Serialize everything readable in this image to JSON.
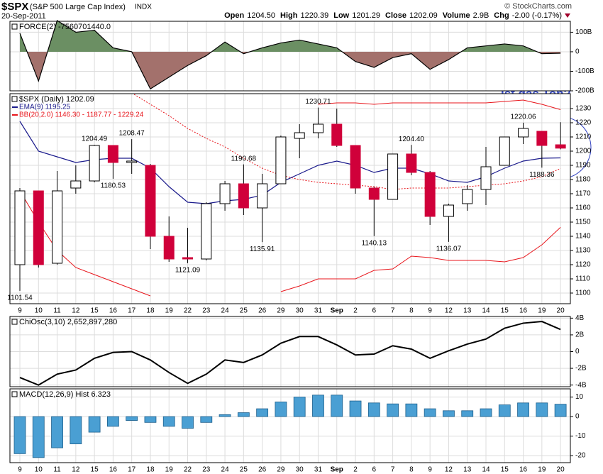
{
  "header": {
    "symbol": "$SPX",
    "name": "(S&P 500 Large Cap Index)",
    "exchange": "INDX",
    "date": "20-Sep-2011",
    "credit": "© StockCharts.com",
    "quote": [
      {
        "label": "Open",
        "value": "1204.50"
      },
      {
        "label": "High",
        "value": "1220.39"
      },
      {
        "label": "Low",
        "value": "1201.29"
      },
      {
        "label": "Close",
        "value": "1202.09"
      },
      {
        "label": "Volume",
        "value": "2.9B"
      },
      {
        "label": "Chg",
        "value": "-2.00 (-0.17%)"
      }
    ]
  },
  "chart_data": [
    {
      "type": "area",
      "title": "FORCE(2) -7560701440.0",
      "up_color": "#6b8f63",
      "down_color": "#a3716c",
      "values": [
        95,
        -150,
        160,
        100,
        110,
        20,
        0,
        -190,
        -130,
        -70,
        -20,
        50,
        -10,
        20,
        45,
        60,
        40,
        20,
        -50,
        -80,
        -30,
        -10,
        -90,
        -40,
        20,
        30,
        40,
        30,
        -10,
        -7.56
      ],
      "ylim": [
        -200,
        156
      ],
      "yticks": [
        {
          "value": 100,
          "label": "100B"
        },
        0,
        {
          "value": -100,
          "label": "-100B"
        },
        {
          "value": -200,
          "label": "-200B"
        }
      ],
      "grid": true
    },
    {
      "type": "candlestick",
      "title": "$SPX (Daily) 1202.09",
      "note": "ist das Top?",
      "categories": [
        "9",
        "10",
        "11",
        "12",
        "15",
        "16",
        "17",
        "18",
        "19",
        "22",
        "23",
        "24",
        "25",
        "26",
        "29",
        "30",
        "31",
        "Sep",
        "2",
        "6",
        "7",
        "8",
        "9",
        "12",
        "13",
        "14",
        "15",
        "16",
        "19",
        "20"
      ],
      "open": [
        1120,
        1172,
        1121,
        1174,
        1179,
        1204,
        1192,
        1190,
        1140,
        1125,
        1124,
        1163,
        1177,
        1160,
        1177,
        1209,
        1213,
        1219,
        1204,
        1174,
        1166,
        1198,
        1185,
        1154,
        1163,
        1173,
        1190,
        1210,
        1214,
        1204.5
      ],
      "high": [
        1174,
        1172,
        1186,
        1190,
        1204.49,
        1204,
        1208.47,
        1191,
        1154,
        1146,
        1164,
        1179,
        1190.68,
        1184,
        1211,
        1219,
        1230.71,
        1230,
        1204,
        1175,
        1198,
        1204.4,
        1186,
        1163,
        1176,
        1203,
        1210,
        1220.06,
        1214,
        1220.39
      ],
      "low": [
        1101.54,
        1118,
        1120,
        1170,
        1178,
        1180.53,
        1184,
        1131,
        1122,
        1121.09,
        1123,
        1158,
        1155,
        1135.91,
        1177,
        1195,
        1209,
        1203,
        1170,
        1140.13,
        1166,
        1183,
        1148,
        1136.07,
        1158,
        1162,
        1190,
        1205,
        1188.36,
        1201.29
      ],
      "close": [
        1172,
        1120,
        1172,
        1179,
        1204,
        1192,
        1193,
        1140,
        1124,
        1124,
        1163,
        1177,
        1160,
        1177,
        1210,
        1213,
        1219,
        1204,
        1174,
        1166,
        1198,
        1185,
        1154,
        1162,
        1173,
        1189,
        1210,
        1216,
        1204,
        1202.09
      ],
      "high_labels": [
        null,
        null,
        null,
        null,
        "1204.49",
        null,
        "1208.47",
        null,
        null,
        null,
        null,
        null,
        "1190.68",
        null,
        null,
        null,
        "1230.71",
        null,
        null,
        null,
        null,
        "1204.40",
        null,
        null,
        null,
        null,
        null,
        "1220.06",
        null,
        null
      ],
      "low_labels": [
        "1101.54",
        null,
        null,
        null,
        null,
        "1180.53",
        null,
        null,
        null,
        "1121.09",
        null,
        null,
        null,
        "1135.91",
        null,
        null,
        null,
        null,
        null,
        "1140.13",
        null,
        null,
        null,
        "1136.07",
        null,
        null,
        null,
        null,
        "1188.36",
        null
      ],
      "up_color": "#ffffff",
      "down_color": "#d0003a",
      "series": [
        {
          "name": "EMA(9) 1195.25",
          "color": "#1a1a8c",
          "values": [
            1221,
            1200,
            1196,
            1192,
            1194,
            1195,
            1195,
            1188,
            1175,
            1164,
            1163,
            1165,
            1166,
            1169,
            1178,
            1184,
            1190,
            1193,
            1190,
            1185,
            1188,
            1188,
            1184,
            1179,
            1178,
            1182,
            1188,
            1193,
            1195,
            1195.25
          ]
        }
      ],
      "bands": {
        "name": "BB(20,2.0) 1146.30 - 1187.77 - 1229.24",
        "color": "#e8151b",
        "upper": [
          null,
          null,
          null,
          null,
          null,
          null,
          null,
          null,
          null,
          null,
          null,
          null,
          null,
          null,
          null,
          null,
          1233,
          1234,
          1234,
          1233,
          1234,
          1234,
          1234,
          1234,
          1234,
          1234,
          1235,
          1236,
          1233,
          1229.24
        ],
        "middle": [
          null,
          null,
          null,
          null,
          null,
          null,
          1241,
          1233,
          1225,
          1216,
          1209,
          1203,
          1195,
          1188,
          1183,
          1180,
          1178,
          1177,
          1176,
          1175,
          1173,
          1174,
          1174,
          1174,
          1175,
          1176,
          1177,
          1179,
          1182,
          1187.77
        ],
        "lower": [
          1172,
          1150,
          1130,
          1118,
          1113,
          1108,
          1103,
          1098,
          null,
          null,
          null,
          null,
          null,
          null,
          1101,
          1105,
          1110,
          1110,
          1110,
          1116,
          1117,
          1126,
          1125,
          1123,
          1123,
          1123,
          1122,
          1125,
          1134,
          1146.3
        ]
      },
      "ylim": [
        1092.5,
        1240.5
      ],
      "yticks": [
        1100,
        1110,
        1120,
        1130,
        1140,
        1150,
        1160,
        1170,
        1180,
        1190,
        1200,
        1210,
        1220,
        1230
      ],
      "grid": true
    },
    {
      "type": "line",
      "title": "ChiOsc(3,10) 2,652,897,280",
      "color": "#000000",
      "values": [
        -3.1,
        -4,
        -2.7,
        -2.2,
        -0.8,
        -0.1,
        0,
        -1,
        -2.5,
        -3.8,
        -2.7,
        -1,
        -1.3,
        -0.4,
        1,
        1.8,
        1.8,
        0.8,
        -0.4,
        -0.3,
        0.7,
        0.3,
        -0.8,
        0.1,
        0.9,
        1.5,
        2.8,
        3.4,
        3.6,
        2.65
      ],
      "ylim": [
        -4.2,
        4.2
      ],
      "yticks": [
        {
          "value": 4,
          "label": "4B"
        },
        {
          "value": 2,
          "label": "2B"
        },
        0,
        {
          "value": -2,
          "label": "-2B"
        },
        {
          "value": -4,
          "label": "-4B"
        }
      ],
      "grid": true
    },
    {
      "type": "bar",
      "title": "MACD(12,26,9) Hist 6.323",
      "color": "#4a9fd3",
      "categories": [
        "9",
        "10",
        "11",
        "12",
        "15",
        "16",
        "17",
        "18",
        "19",
        "22",
        "23",
        "24",
        "25",
        "26",
        "29",
        "30",
        "31",
        "Sep",
        "2",
        "6",
        "7",
        "8",
        "9",
        "12",
        "13",
        "14",
        "15",
        "16",
        "19",
        "20"
      ],
      "values": [
        -19,
        -21,
        -16,
        -14,
        -8,
        -5,
        -2,
        -3,
        -5,
        -6,
        -3,
        1,
        2,
        4,
        7.5,
        10,
        11,
        11,
        8,
        7,
        6.5,
        6.5,
        4,
        3,
        3,
        4,
        6,
        7,
        7,
        6.323
      ],
      "ylim": [
        -23.6,
        14.2
      ],
      "yticks": [
        10,
        0,
        -10,
        -20
      ],
      "grid": true
    }
  ]
}
